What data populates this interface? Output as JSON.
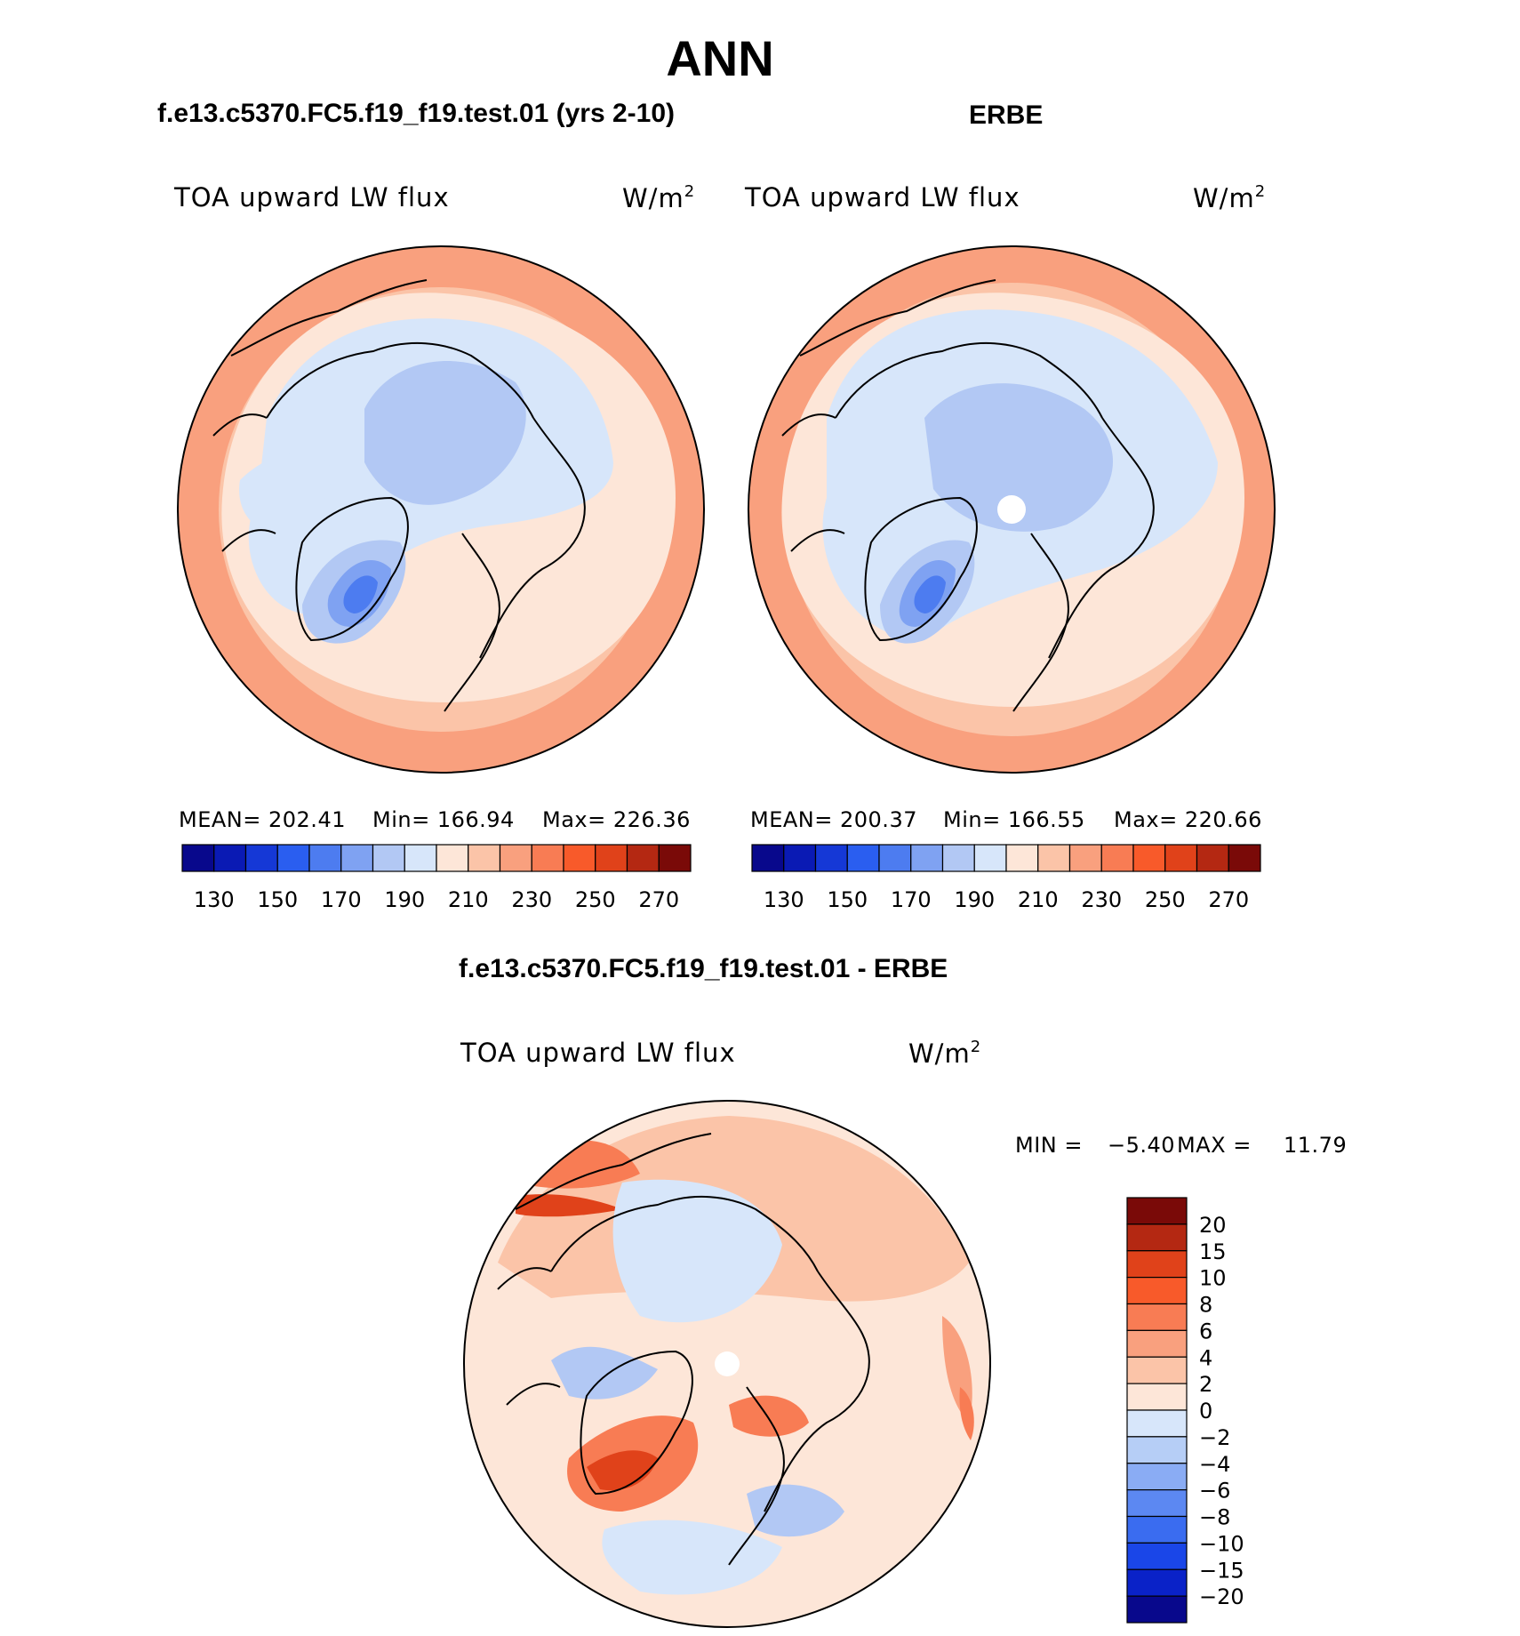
{
  "title": "ANN",
  "colors": {
    "scale": [
      "#08088c",
      "#0a1ab4",
      "#1538d6",
      "#2a5ef0",
      "#4d7cf0",
      "#7fa2f2",
      "#b2c8f4",
      "#d7e6fa",
      "#fde6d8",
      "#fbc4a8",
      "#f9a07e",
      "#f87c54",
      "#f85a2a",
      "#e0421a",
      "#b42812",
      "#7a0a08"
    ],
    "diff_scale": [
      "#08088c",
      "#0a22c8",
      "#1a46e8",
      "#3a6cf0",
      "#5c88f2",
      "#8aacf4",
      "#b6cef6",
      "#d7e6fa",
      "#fde6d8",
      "#fbc4a8",
      "#f9a07e",
      "#f87c54",
      "#f85a2a",
      "#e0421a",
      "#b42812",
      "#7a0a08"
    ],
    "ocean_warm": "#fde6d8",
    "ocean_warm2": "#fbc4a8",
    "ice_light": "#d7e6fa",
    "ice_mid": "#b2c8f4",
    "ice_dark": "#7fa2f2",
    "ice_core": "#4d7cf0"
  },
  "panels": [
    {
      "title": "f.e13.c5370.FC5.f19_f19.test.01 (yrs 2-10)",
      "variable": "TOA upward LW flux",
      "units": "W/m",
      "units_sup": "2",
      "stats": {
        "mean_label": "MEAN=",
        "mean": "202.41",
        "min_label": "Min=",
        "min": "166.94",
        "max_label": "Max=",
        "max": "226.36"
      }
    },
    {
      "title": "ERBE",
      "variable": "TOA upward LW flux",
      "units": "W/m",
      "units_sup": "2",
      "stats": {
        "mean_label": "MEAN=",
        "mean": "200.37",
        "min_label": "Min=",
        "min": "166.55",
        "max_label": "Max=",
        "max": "220.66"
      }
    }
  ],
  "diff_panel": {
    "title": "f.e13.c5370.FC5.f19_f19.test.01 - ERBE",
    "variable": "TOA upward LW flux",
    "units": "W/m",
    "units_sup": "2",
    "min_label": "MIN =",
    "min": "−5.40",
    "max_label": "MAX =",
    "max": "11.79"
  },
  "chart_data": [
    {
      "type": "heatmap",
      "title": "f.e13.c5370.FC5.f19_f19.test.01 (yrs 2-10)",
      "projection": "north polar stereographic",
      "variable": "TOA upward LW flux",
      "units": "W/m2",
      "mean": 202.41,
      "min": 166.94,
      "max": 226.36,
      "colorbar_ticks": [
        "130",
        "150",
        "170",
        "190",
        "210",
        "230",
        "250",
        "270"
      ],
      "levels": [
        120,
        130,
        140,
        150,
        160,
        170,
        180,
        190,
        200,
        210,
        220,
        230,
        240,
        250,
        260,
        270,
        280
      ]
    },
    {
      "type": "heatmap",
      "title": "ERBE",
      "projection": "north polar stereographic",
      "variable": "TOA upward LW flux",
      "units": "W/m2",
      "mean": 200.37,
      "min": 166.55,
      "max": 220.66,
      "colorbar_ticks": [
        "130",
        "150",
        "170",
        "190",
        "210",
        "230",
        "250",
        "270"
      ],
      "levels": [
        120,
        130,
        140,
        150,
        160,
        170,
        180,
        190,
        200,
        210,
        220,
        230,
        240,
        250,
        260,
        270,
        280
      ]
    },
    {
      "type": "heatmap",
      "title": "f.e13.c5370.FC5.f19_f19.test.01 - ERBE",
      "projection": "north polar stereographic",
      "variable": "TOA upward LW flux",
      "units": "W/m2",
      "min": -5.4,
      "max": 11.79,
      "colorbar_ticks": [
        "20",
        "15",
        "10",
        "8",
        "6",
        "4",
        "2",
        "0",
        "−2",
        "−4",
        "−6",
        "−8",
        "−10",
        "−15",
        "−20"
      ]
    }
  ]
}
